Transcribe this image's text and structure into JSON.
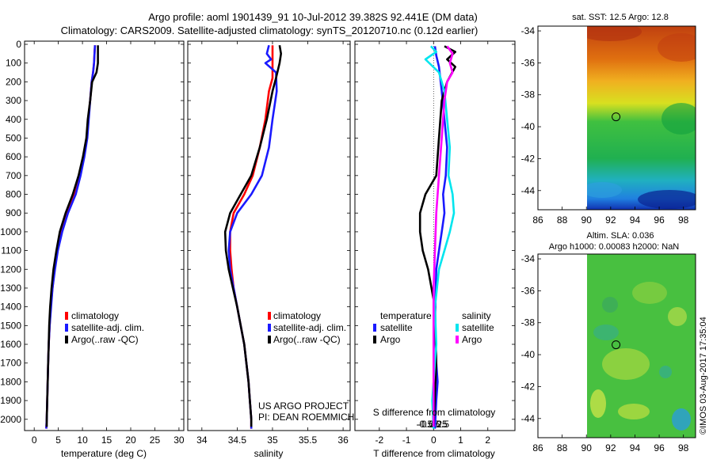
{
  "header": {
    "line1": "Argo profile: aoml 1901439_91 10-Jul-2012 39.382S 92.441E (DM data)",
    "line2": "Climatology: CARS2009. Satellite-adjusted climatology: synTS_20120710.nc (0.12d earlier)"
  },
  "colors": {
    "climatology": "#ff0000",
    "satellite": "#1a1aff",
    "argo": "#000000",
    "satellite_s": "#00e5ee",
    "argo_s": "#ff00ff"
  },
  "chart_data": [
    {
      "type": "line",
      "id": "temperature",
      "xlabel": "temperature (deg C)",
      "ylabel": "",
      "xlim": [
        -2,
        31
      ],
      "ylim": [
        2060,
        0
      ],
      "xticks": [
        0,
        5,
        10,
        15,
        20,
        25,
        30
      ],
      "yticks": [
        0,
        100,
        200,
        300,
        400,
        500,
        600,
        700,
        800,
        900,
        1000,
        1100,
        1200,
        1300,
        1400,
        1500,
        1600,
        1700,
        1800,
        1900,
        2000
      ],
      "legend": [
        "climatology",
        "satellite-adj. clim.",
        "Argo(..raw -QC)"
      ],
      "series": [
        {
          "name": "climatology",
          "color": "#ff0000",
          "points": [
            [
              12.6,
              5
            ],
            [
              12.5,
              50
            ],
            [
              12.4,
              100
            ],
            [
              12.2,
              150
            ],
            [
              11.9,
              200
            ],
            [
              11.6,
              300
            ],
            [
              11.2,
              400
            ],
            [
              10.9,
              500
            ],
            [
              10.3,
              600
            ],
            [
              9.4,
              700
            ],
            [
              8.4,
              800
            ],
            [
              6.9,
              900
            ],
            [
              5.6,
              1000
            ],
            [
              4.8,
              1100
            ],
            [
              4.2,
              1200
            ],
            [
              3.8,
              1300
            ],
            [
              3.4,
              1400
            ],
            [
              3.2,
              1500
            ],
            [
              3.0,
              1600
            ],
            [
              2.9,
              1700
            ],
            [
              2.8,
              1800
            ],
            [
              2.7,
              1900
            ],
            [
              2.6,
              2000
            ],
            [
              2.5,
              2050
            ]
          ]
        },
        {
          "name": "satellite-adj. clim.",
          "color": "#1a1aff",
          "points": [
            [
              12.6,
              5
            ],
            [
              12.5,
              50
            ],
            [
              12.4,
              100
            ],
            [
              12.2,
              150
            ],
            [
              11.9,
              200
            ],
            [
              11.6,
              300
            ],
            [
              11.3,
              400
            ],
            [
              11.0,
              500
            ],
            [
              10.4,
              600
            ],
            [
              9.6,
              700
            ],
            [
              8.6,
              800
            ],
            [
              7.0,
              900
            ],
            [
              5.8,
              1000
            ],
            [
              4.9,
              1100
            ],
            [
              4.3,
              1200
            ],
            [
              3.8,
              1300
            ],
            [
              3.5,
              1400
            ],
            [
              3.2,
              1500
            ],
            [
              3.0,
              1600
            ],
            [
              2.9,
              1700
            ],
            [
              2.8,
              1800
            ],
            [
              2.7,
              1900
            ],
            [
              2.6,
              2000
            ],
            [
              2.5,
              2050
            ]
          ]
        },
        {
          "name": "Argo(..raw -QC)",
          "color": "#000000",
          "points": [
            [
              13.2,
              5
            ],
            [
              13.2,
              50
            ],
            [
              13.2,
              100
            ],
            [
              12.9,
              150
            ],
            [
              12.0,
              200
            ],
            [
              11.6,
              300
            ],
            [
              11.1,
              400
            ],
            [
              10.8,
              500
            ],
            [
              10.1,
              600
            ],
            [
              9.2,
              700
            ],
            [
              8.0,
              800
            ],
            [
              6.5,
              900
            ],
            [
              5.3,
              1000
            ],
            [
              4.6,
              1100
            ],
            [
              4.0,
              1200
            ],
            [
              3.6,
              1300
            ],
            [
              3.3,
              1400
            ],
            [
              3.1,
              1500
            ],
            [
              3.0,
              1600
            ],
            [
              2.9,
              1700
            ],
            [
              2.8,
              1800
            ],
            [
              2.7,
              1900
            ],
            [
              2.6,
              2000
            ],
            [
              2.6,
              2040
            ]
          ]
        }
      ]
    },
    {
      "type": "line",
      "id": "salinity",
      "xlabel": "salinity",
      "ylabel": "",
      "xlim": [
        33.8,
        36.1
      ],
      "ylim": [
        2060,
        0
      ],
      "xticks": [
        34,
        34.5,
        35,
        35.5,
        36
      ],
      "legend": [
        "climatology",
        "satellite-adj. clim.",
        "Argo(..raw -QC)"
      ],
      "annotation": [
        "US ARGO PROJECT",
        "PI: DEAN ROEMMICH"
      ],
      "series": [
        {
          "name": "climatology",
          "color": "#ff0000",
          "points": [
            [
              35.0,
              5
            ],
            [
              35.0,
              60
            ],
            [
              35.0,
              120
            ],
            [
              35.0,
              180
            ],
            [
              34.95,
              250
            ],
            [
              34.9,
              400
            ],
            [
              34.82,
              550
            ],
            [
              34.72,
              700
            ],
            [
              34.6,
              800
            ],
            [
              34.45,
              900
            ],
            [
              34.4,
              1000
            ],
            [
              34.4,
              1100
            ],
            [
              34.42,
              1200
            ],
            [
              34.45,
              1300
            ],
            [
              34.5,
              1400
            ],
            [
              34.55,
              1500
            ],
            [
              34.6,
              1600
            ],
            [
              34.63,
              1700
            ],
            [
              34.66,
              1800
            ],
            [
              34.68,
              1900
            ],
            [
              34.7,
              2000
            ],
            [
              34.7,
              2050
            ]
          ]
        },
        {
          "name": "satellite-adj. clim.",
          "color": "#1a1aff",
          "points": [
            [
              34.95,
              5
            ],
            [
              34.92,
              50
            ],
            [
              34.98,
              80
            ],
            [
              34.9,
              100
            ],
            [
              35.05,
              150
            ],
            [
              35.06,
              250
            ],
            [
              35.0,
              400
            ],
            [
              34.95,
              550
            ],
            [
              34.85,
              700
            ],
            [
              34.7,
              800
            ],
            [
              34.5,
              900
            ],
            [
              34.4,
              1000
            ],
            [
              34.38,
              1100
            ],
            [
              34.4,
              1200
            ],
            [
              34.45,
              1300
            ],
            [
              34.5,
              1400
            ],
            [
              34.55,
              1500
            ],
            [
              34.6,
              1600
            ],
            [
              34.63,
              1700
            ],
            [
              34.66,
              1800
            ],
            [
              34.68,
              1900
            ],
            [
              34.7,
              2000
            ],
            [
              34.7,
              2050
            ]
          ]
        },
        {
          "name": "Argo(..raw -QC)",
          "color": "#000000",
          "points": [
            [
              35.1,
              5
            ],
            [
              35.12,
              50
            ],
            [
              35.1,
              100
            ],
            [
              35.05,
              180
            ],
            [
              35.0,
              250
            ],
            [
              34.92,
              400
            ],
            [
              34.82,
              550
            ],
            [
              34.7,
              700
            ],
            [
              34.55,
              800
            ],
            [
              34.4,
              900
            ],
            [
              34.33,
              1000
            ],
            [
              34.34,
              1100
            ],
            [
              34.38,
              1200
            ],
            [
              34.44,
              1300
            ],
            [
              34.5,
              1400
            ],
            [
              34.55,
              1500
            ],
            [
              34.6,
              1600
            ],
            [
              34.63,
              1700
            ],
            [
              34.66,
              1800
            ],
            [
              34.68,
              1900
            ],
            [
              34.7,
              2000
            ],
            [
              34.7,
              2040
            ]
          ]
        }
      ]
    },
    {
      "type": "line",
      "id": "difference",
      "xlabel": "T difference from climatology",
      "xlabel_top": "S difference from climatology",
      "ylabel": "",
      "xlim": [
        -2.9,
        3.0
      ],
      "ylim": [
        2060,
        0
      ],
      "xticks": [
        -2,
        -1,
        0,
        1,
        2
      ],
      "xticks_top": [
        -0.5,
        -0.25,
        0,
        0.25,
        0.5
      ],
      "legend_temperature_title": "temperature",
      "legend_salinity_title": "salinity",
      "legend_entries": [
        "satellite",
        "Argo"
      ],
      "series": [
        {
          "name": "temperature satellite",
          "color": "#1a1aff",
          "points": [
            [
              0.05,
              10
            ],
            [
              0.1,
              60
            ],
            [
              0.2,
              120
            ],
            [
              0.3,
              250
            ],
            [
              0.4,
              400
            ],
            [
              0.5,
              550
            ],
            [
              0.45,
              700
            ],
            [
              0.35,
              800
            ],
            [
              0.4,
              900
            ],
            [
              0.3,
              1000
            ],
            [
              0.2,
              1100
            ],
            [
              0.1,
              1200
            ],
            [
              0.05,
              1500
            ],
            [
              0.1,
              1700
            ],
            [
              0.15,
              1800
            ],
            [
              0.1,
              1900
            ],
            [
              0.05,
              2050
            ]
          ]
        },
        {
          "name": "temperature Argo",
          "color": "#000000",
          "points": [
            [
              0.4,
              10
            ],
            [
              0.8,
              40
            ],
            [
              0.5,
              80
            ],
            [
              0.8,
              120
            ],
            [
              0.5,
              200
            ],
            [
              0.3,
              300
            ],
            [
              0.2,
              500
            ],
            [
              0.1,
              700
            ],
            [
              -0.3,
              800
            ],
            [
              -0.5,
              900
            ],
            [
              -0.5,
              1000
            ],
            [
              -0.4,
              1100
            ],
            [
              -0.2,
              1200
            ],
            [
              0.05,
              1400
            ],
            [
              0.1,
              1700
            ],
            [
              0.0,
              2040
            ]
          ]
        },
        {
          "name": "salinity satellite",
          "color": "#00e5ee",
          "points": [
            [
              -0.1,
              10
            ],
            [
              0.1,
              40
            ],
            [
              -0.3,
              80
            ],
            [
              0.2,
              150
            ],
            [
              0.4,
              250
            ],
            [
              0.5,
              400
            ],
            [
              0.6,
              550
            ],
            [
              0.55,
              700
            ],
            [
              0.7,
              800
            ],
            [
              0.75,
              900
            ],
            [
              0.6,
              1000
            ],
            [
              0.4,
              1100
            ],
            [
              0.2,
              1200
            ],
            [
              0.05,
              1400
            ],
            [
              0.1,
              1600
            ],
            [
              0.0,
              1800
            ],
            [
              -0.05,
              1900
            ],
            [
              0.0,
              2050
            ]
          ]
        },
        {
          "name": "salinity Argo",
          "color": "#ff00ff",
          "points": [
            [
              0.5,
              10
            ],
            [
              0.7,
              50
            ],
            [
              0.6,
              100
            ],
            [
              0.7,
              150
            ],
            [
              0.5,
              200
            ],
            [
              0.4,
              300
            ],
            [
              0.3,
              500
            ],
            [
              0.2,
              700
            ],
            [
              0.1,
              900
            ],
            [
              0.05,
              1100
            ],
            [
              0.0,
              1300
            ],
            [
              0.0,
              1700
            ],
            [
              0.0,
              2040
            ]
          ]
        }
      ]
    },
    {
      "type": "heatmap",
      "id": "sst_map",
      "title": "sat. SST: 12.5 Argo: 12.8",
      "xlim": [
        86,
        99
      ],
      "ylim": [
        -45.2,
        -33.7
      ],
      "xticks": [
        86,
        88,
        90,
        92,
        94,
        96,
        98
      ],
      "yticks": [
        -34,
        -36,
        -38,
        -40,
        -42,
        -44
      ],
      "data_lon_min": 90,
      "argo_marker": [
        92.44,
        -39.38
      ]
    },
    {
      "type": "heatmap",
      "id": "sla_map",
      "title_line1": "Altim. SLA: 0.036",
      "title_line2": "Argo h1000: 0.00083 h2000: NaN",
      "xlim": [
        86,
        99
      ],
      "ylim": [
        -45.2,
        -33.7
      ],
      "xticks": [
        86,
        88,
        90,
        92,
        94,
        96,
        98
      ],
      "yticks": [
        -34,
        -36,
        -38,
        -40,
        -42,
        -44
      ],
      "data_lon_min": 90,
      "argo_marker": [
        92.44,
        -39.38
      ]
    }
  ],
  "footer_credit": "©IMOS 03-Aug-2017 17:35:04"
}
